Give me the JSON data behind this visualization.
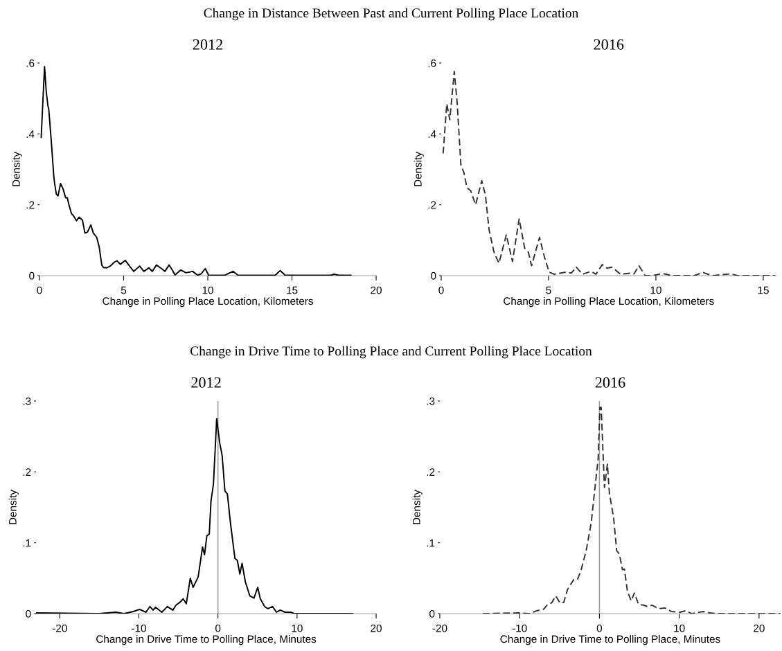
{
  "chart_data": [
    {
      "type": "line",
      "title": "2012",
      "annotations": [
        "Change in Distance Between Past and Current Polling Place Location"
      ],
      "xlabel": "Change in Polling Place Location, Kilometers",
      "ylabel": "Density",
      "xlim": [
        0,
        20
      ],
      "xticks": [
        0,
        5,
        10,
        15,
        20
      ],
      "ylim": [
        0,
        0.6
      ],
      "yticks": [
        0,
        {
          "value": 0.2,
          "label": ".2"
        },
        {
          "value": 0.4,
          "label": ".4"
        },
        {
          "value": 0.6,
          "label": ".6"
        }
      ],
      "line_style": "solid",
      "grid": false,
      "series": [
        {
          "color": "#000000",
          "x": [
            0.1,
            0.3,
            0.4,
            0.5,
            0.55,
            0.7,
            0.85,
            0.9,
            1.0,
            1.1,
            1.25,
            1.4,
            1.55,
            1.65,
            1.75,
            1.9,
            2.0,
            2.2,
            2.35,
            2.55,
            2.7,
            2.85,
            3.05,
            3.2,
            3.4,
            3.55,
            3.7,
            3.8,
            4.0,
            4.2,
            4.45,
            4.6,
            4.8,
            5.1,
            5.3,
            5.6,
            5.95,
            6.2,
            6.5,
            6.7,
            6.95,
            7.3,
            7.45,
            7.7,
            7.9,
            8.05,
            8.4,
            8.7,
            9.1,
            9.4,
            9.6,
            9.85,
            10.05,
            11,
            11.5,
            11.8,
            14.0,
            14.3,
            14.6,
            17.3,
            17.5,
            17.8,
            18.5
          ],
          "values": [
            0.39,
            0.59,
            0.52,
            0.48,
            0.47,
            0.38,
            0.28,
            0.26,
            0.23,
            0.225,
            0.26,
            0.245,
            0.22,
            0.22,
            0.2,
            0.175,
            0.17,
            0.155,
            0.165,
            0.157,
            0.12,
            0.123,
            0.143,
            0.12,
            0.108,
            0.08,
            0.03,
            0.023,
            0.022,
            0.027,
            0.038,
            0.042,
            0.032,
            0.043,
            0.03,
            0.012,
            0.027,
            0.012,
            0.022,
            0.012,
            0.03,
            0.018,
            0.012,
            0.03,
            0.015,
            0.002,
            0.016,
            0.008,
            0.012,
            0.001,
            0.005,
            0.02,
            0.001,
            0.001,
            0.012,
            0.001,
            0.001,
            0.014,
            0.001,
            0.001,
            0.004,
            0.001,
            0.001
          ]
        }
      ]
    },
    {
      "type": "line",
      "title": "2016",
      "xlabel": "Change in Polling Place Location, Kilometers",
      "ylabel": "Density",
      "xlim": [
        0,
        15.6
      ],
      "xticks": [
        0,
        5,
        10,
        15
      ],
      "ylim": [
        0,
        0.6
      ],
      "yticks": [
        0,
        {
          "value": 0.2,
          "label": ".2"
        },
        {
          "value": 0.4,
          "label": ".4"
        },
        {
          "value": 0.6,
          "label": ".6"
        }
      ],
      "line_style": "dashed",
      "grid": false,
      "series": [
        {
          "color": "#333333",
          "x": [
            0.09,
            0.26,
            0.4,
            0.61,
            0.74,
            0.92,
            1.05,
            1.2,
            1.37,
            1.6,
            1.89,
            2.06,
            2.23,
            2.46,
            2.69,
            3.03,
            3.32,
            3.63,
            3.89,
            4.06,
            4.21,
            4.58,
            4.81,
            5.03,
            5.26,
            5.84,
            6.06,
            6.29,
            6.58,
            6.98,
            7.21,
            7.5,
            7.72,
            7.95,
            8.35,
            8.81,
            8.98,
            9.21,
            9.5,
            9.84,
            10.3,
            10.76,
            11.78,
            12.2,
            12.6,
            13.5,
            13.8,
            15.56
          ],
          "values": [
            0.345,
            0.485,
            0.44,
            0.576,
            0.49,
            0.31,
            0.293,
            0.248,
            0.24,
            0.2,
            0.268,
            0.227,
            0.129,
            0.066,
            0.035,
            0.115,
            0.04,
            0.16,
            0.077,
            0.066,
            0.028,
            0.108,
            0.052,
            0.01,
            0.004,
            0.01,
            0.007,
            0.024,
            0.004,
            0.012,
            0.004,
            0.031,
            0.021,
            0.024,
            0.004,
            0.007,
            0.005,
            0.028,
            0,
            0,
            0.006,
            0,
            0,
            0.009,
            0,
            0.005,
            0,
            0
          ]
        }
      ]
    },
    {
      "type": "line",
      "title": "2012",
      "annotations": [
        "Change in Drive Time to Polling Place and Current Polling Place Location"
      ],
      "xlabel": "Change in Drive Time to Polling Place, Minutes",
      "ylabel": "Density",
      "xlim": [
        -23,
        20
      ],
      "xticks": [
        -20,
        -10,
        0,
        10,
        20
      ],
      "ylim": [
        0,
        0.3
      ],
      "yticks": [
        0,
        {
          "value": 0.1,
          "label": ".1"
        },
        {
          "value": 0.2,
          "label": ".2"
        },
        {
          "value": 0.3,
          "label": ".3"
        }
      ],
      "line_style": "solid",
      "grid": false,
      "ref_lines": [
        {
          "axis": "x",
          "value": 0,
          "color": "#a0a0a0"
        }
      ],
      "series": [
        {
          "color": "#000000",
          "x": [
            -22.96,
            -15.1,
            -12.9,
            -11.9,
            -10.7,
            -9.9,
            -9.1,
            -8.6,
            -8.2,
            -7.9,
            -7.1,
            -6.4,
            -5.7,
            -5.3,
            -4.7,
            -4.4,
            -4.0,
            -3.5,
            -3.14,
            -2.5,
            -1.95,
            -1.7,
            -1.4,
            -1.1,
            -0.88,
            -0.57,
            -0.16,
            0.22,
            0.53,
            0.88,
            1.19,
            1.57,
            2.14,
            2.45,
            2.77,
            3.05,
            3.46,
            4.03,
            4.56,
            5.03,
            5.35,
            5.9,
            6.3,
            6.9,
            7.4,
            7.86,
            8.5,
            9.2,
            9.7,
            17.0
          ],
          "values": [
            0.001,
            0,
            0.002,
            0,
            0.003,
            0.006,
            0.002,
            0.01,
            0.005,
            0.009,
            0.002,
            0.01,
            0.005,
            0.012,
            0.017,
            0.021,
            0.014,
            0.05,
            0.037,
            0.052,
            0.094,
            0.083,
            0.11,
            0.112,
            0.159,
            0.183,
            0.275,
            0.241,
            0.223,
            0.173,
            0.169,
            0.129,
            0.078,
            0.075,
            0.056,
            0.071,
            0.045,
            0.025,
            0.022,
            0.037,
            0.021,
            0.01,
            0.007,
            0.01,
            0.002,
            0.005,
            0.002,
            0.002,
            0,
            0
          ]
        }
      ]
    },
    {
      "type": "line",
      "title": "2016",
      "xlabel": "Change in Drive Time to Polling Place, Minutes",
      "ylabel": "Density",
      "xlim": [
        -20,
        22.7
      ],
      "xticks": [
        -20,
        -10,
        0,
        10,
        20
      ],
      "ylim": [
        0,
        0.3
      ],
      "yticks": [
        0,
        {
          "value": 0.1,
          "label": ".1"
        },
        {
          "value": 0.2,
          "label": ".2"
        },
        {
          "value": 0.3,
          "label": ".3"
        }
      ],
      "line_style": "dashed",
      "grid": false,
      "ref_lines": [
        {
          "axis": "x",
          "value": 0,
          "color": "#a0a0a0"
        }
      ],
      "series": [
        {
          "color": "#333333",
          "x": [
            -14.6,
            -10.1,
            -8.7,
            -7.9,
            -7.0,
            -6.5,
            -6.0,
            -5.47,
            -4.94,
            -4.47,
            -4.0,
            -3.22,
            -2.75,
            -2.28,
            -1.66,
            -1.03,
            -0.4,
            -0.16,
            0.06,
            0.22,
            0.63,
            1.0,
            1.25,
            1.78,
            2.16,
            2.5,
            2.88,
            3.13,
            3.5,
            3.97,
            4.38,
            4.9,
            5.53,
            6.0,
            6.6,
            7.4,
            8.2,
            9.0,
            10.1,
            10.8,
            11.6,
            13.0,
            13.8,
            14.6,
            22.7
          ],
          "values": [
            0,
            0.001,
            0,
            0.004,
            0.006,
            0.013,
            0.015,
            0.025,
            0.015,
            0.016,
            0.034,
            0.048,
            0.048,
            0.062,
            0.089,
            0.128,
            0.194,
            0.218,
            0.291,
            0.291,
            0.178,
            0.211,
            0.17,
            0.135,
            0.089,
            0.084,
            0.062,
            0.063,
            0.032,
            0.018,
            0.029,
            0.013,
            0.012,
            0.01,
            0.012,
            0.007,
            0.008,
            0.003,
            0.002,
            0.004,
            0,
            0.003,
            0.001,
            0,
            0
          ]
        }
      ]
    }
  ]
}
